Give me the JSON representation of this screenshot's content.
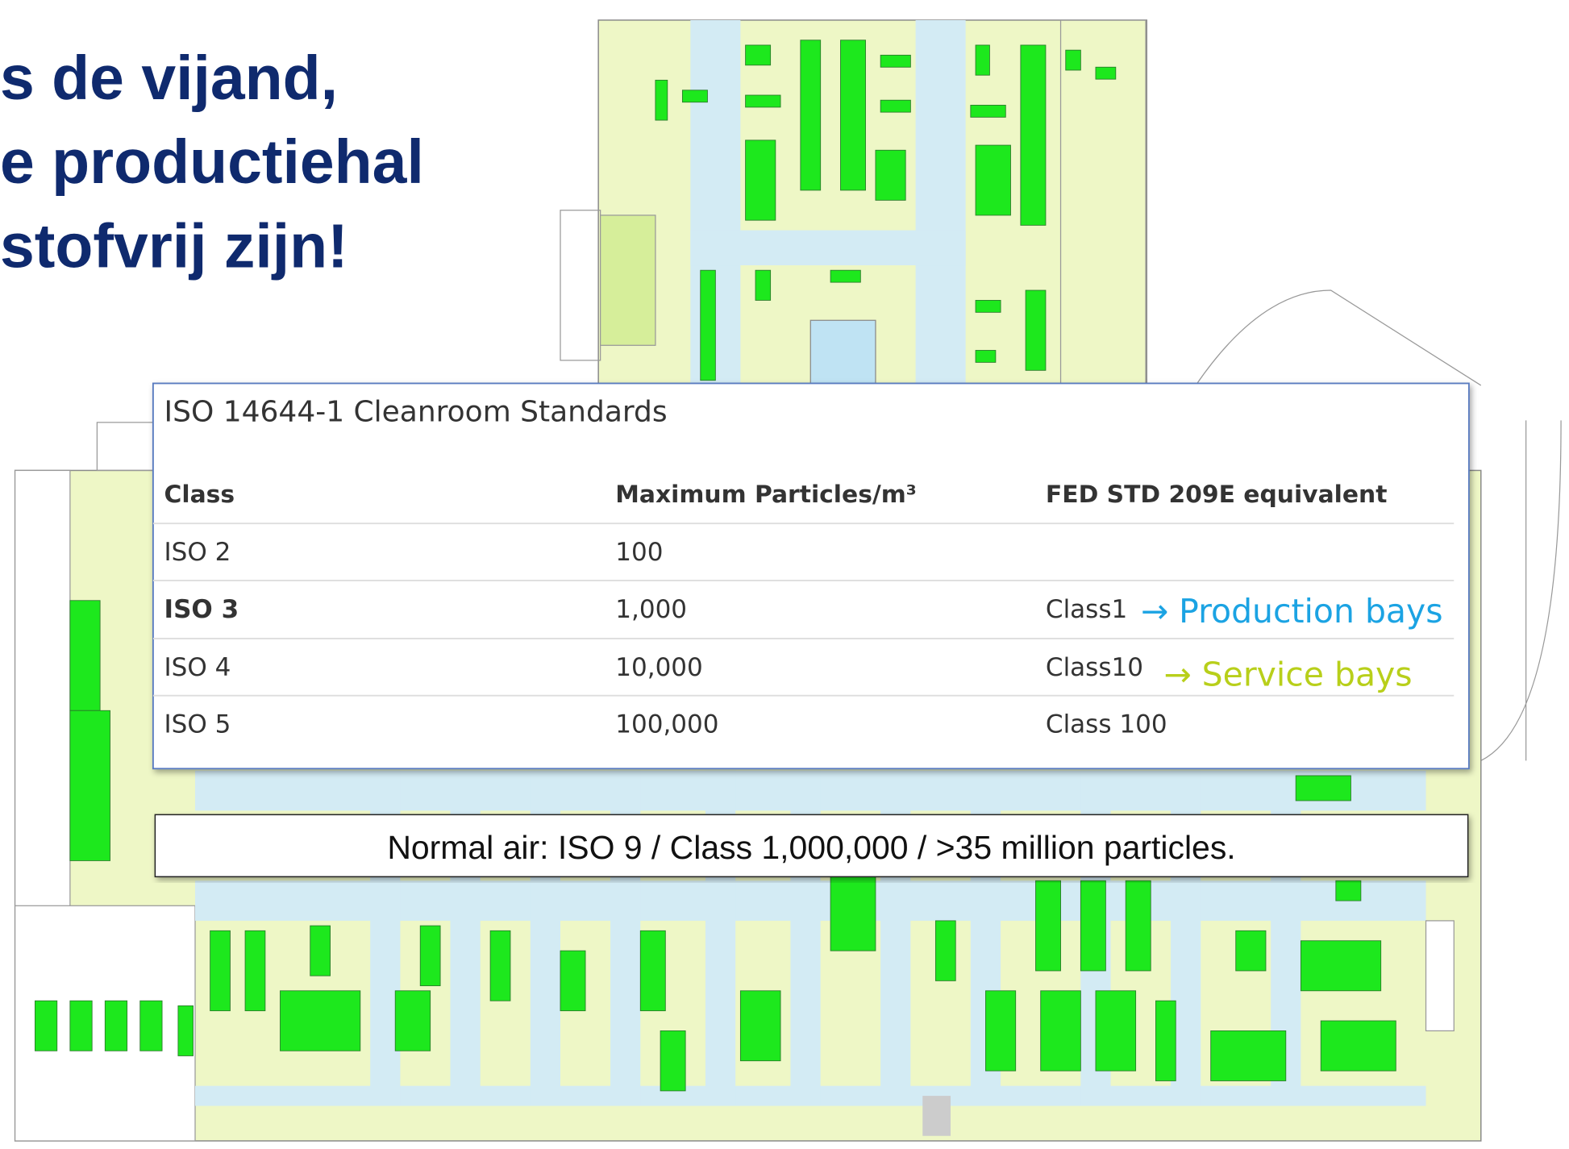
{
  "title": {
    "lines": [
      "s de vijand,",
      "e productiehal",
      "stofvrij zijn!"
    ]
  },
  "table": {
    "title": "ISO 14644-1 Cleanroom Standards",
    "headers": [
      "Class",
      "Maximum Particles/m³",
      "FED STD 209E equivalent"
    ],
    "rows": [
      [
        "ISO 2",
        "100"
      ],
      [
        "ISO 3",
        "1,000",
        "Class1"
      ],
      [
        "ISO 4",
        "10,000",
        "Class10"
      ],
      [
        "ISO 5",
        "100,000",
        "Class 100"
      ]
    ],
    "annotations": [
      "→ Production bays",
      "→ Service bays"
    ]
  },
  "note": "Normal air: ISO 9 / Class 1,000,000 / >35 million particles."
}
